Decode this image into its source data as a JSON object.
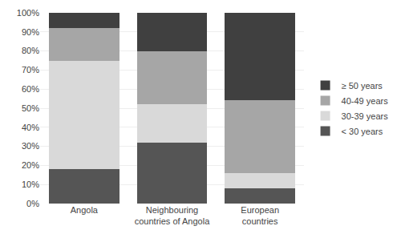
{
  "chart_data": {
    "type": "bar",
    "stacked": true,
    "categories": [
      "Angola",
      "Neighbouring\ncountries of Angola",
      "European\ncountries"
    ],
    "series": [
      {
        "name": "< 30 years",
        "color": "#555555",
        "values": [
          0.18,
          0.32,
          0.08
        ]
      },
      {
        "name": "30-39 years",
        "color": "#d9d9d9",
        "values": [
          0.57,
          0.2,
          0.08
        ]
      },
      {
        "name": "40-49 years",
        "color": "#a6a6a6",
        "values": [
          0.17,
          0.28,
          0.38
        ]
      },
      {
        "name": "≥ 50 years",
        "color": "#404040",
        "values": [
          0.08,
          0.2,
          0.46
        ]
      }
    ],
    "ylim": [
      0,
      1.0
    ],
    "yticks": [
      {
        "value": 0.0,
        "label": "0%"
      },
      {
        "value": 0.1,
        "label": "10%"
      },
      {
        "value": 0.2,
        "label": "20%"
      },
      {
        "value": 0.3,
        "label": "30%"
      },
      {
        "value": 0.4,
        "label": "40%"
      },
      {
        "value": 0.5,
        "label": "50%"
      },
      {
        "value": 0.6,
        "label": "60%"
      },
      {
        "value": 0.7,
        "label": "70%"
      },
      {
        "value": 0.8,
        "label": "80%"
      },
      {
        "value": 0.9,
        "label": "90%"
      },
      {
        "value": 1.0,
        "label": "100%"
      }
    ],
    "grid": true,
    "legend": "right"
  }
}
